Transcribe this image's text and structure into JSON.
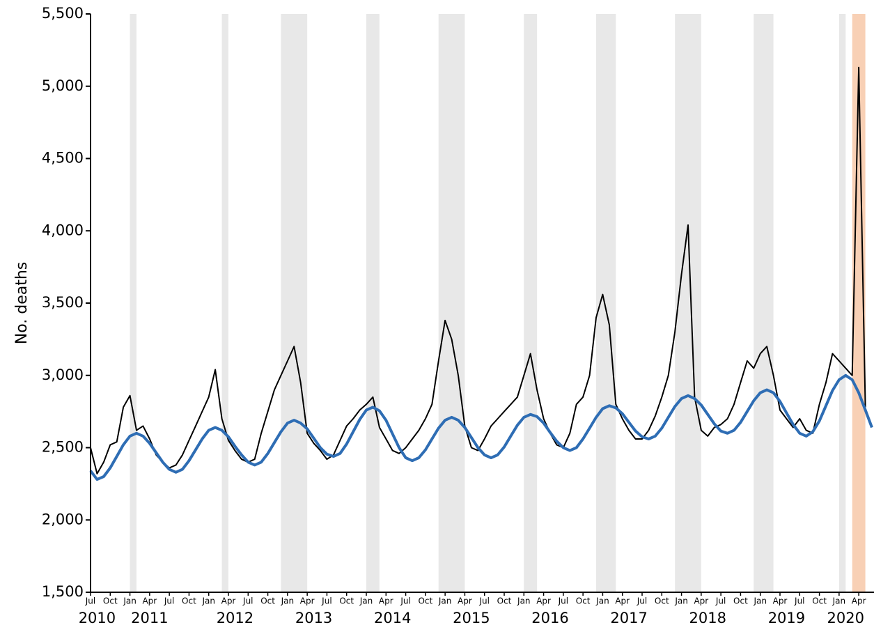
{
  "chart_data": {
    "type": "line",
    "y_label": "No. deaths",
    "ylim": [
      1500,
      5500
    ],
    "yticks": [
      {
        "value": 1500,
        "label": "1,500"
      },
      {
        "value": 2000,
        "label": "2,000"
      },
      {
        "value": 2500,
        "label": "2,500"
      },
      {
        "value": 3000,
        "label": "3,000"
      },
      {
        "value": 3500,
        "label": "3,500"
      },
      {
        "value": 4000,
        "label": "4,000"
      },
      {
        "value": 4500,
        "label": "4,500"
      },
      {
        "value": 5000,
        "label": "5,000"
      },
      {
        "value": 5500,
        "label": "5,500"
      }
    ],
    "xlim": [
      "2010-07",
      "2020-06"
    ],
    "xticks": [
      {
        "value": "2010-07",
        "label": "Jul"
      },
      {
        "value": "2010-10",
        "label": "Oct"
      },
      {
        "value": "2011-01",
        "label": "Jan"
      },
      {
        "value": "2011-04",
        "label": "Apr"
      },
      {
        "value": "2011-07",
        "label": "Jul"
      },
      {
        "value": "2011-10",
        "label": "Oct"
      },
      {
        "value": "2012-01",
        "label": "Jan"
      },
      {
        "value": "2012-04",
        "label": "Apr"
      },
      {
        "value": "2012-07",
        "label": "Jul"
      },
      {
        "value": "2012-10",
        "label": "Oct"
      },
      {
        "value": "2013-01",
        "label": "Jan"
      },
      {
        "value": "2013-04",
        "label": "Apr"
      },
      {
        "value": "2013-07",
        "label": "Jul"
      },
      {
        "value": "2013-10",
        "label": "Oct"
      },
      {
        "value": "2014-01",
        "label": "Jan"
      },
      {
        "value": "2014-04",
        "label": "Apr"
      },
      {
        "value": "2014-07",
        "label": "Jul"
      },
      {
        "value": "2014-10",
        "label": "Oct"
      },
      {
        "value": "2015-01",
        "label": "Jan"
      },
      {
        "value": "2015-04",
        "label": "Apr"
      },
      {
        "value": "2015-07",
        "label": "Jul"
      },
      {
        "value": "2015-10",
        "label": "Oct"
      },
      {
        "value": "2016-01",
        "label": "Jan"
      },
      {
        "value": "2016-04",
        "label": "Apr"
      },
      {
        "value": "2016-07",
        "label": "Jul"
      },
      {
        "value": "2016-10",
        "label": "Oct"
      },
      {
        "value": "2017-01",
        "label": "Jan"
      },
      {
        "value": "2017-04",
        "label": "Apr"
      },
      {
        "value": "2017-07",
        "label": "Jul"
      },
      {
        "value": "2017-10",
        "label": "Oct"
      },
      {
        "value": "2018-01",
        "label": "Jan"
      },
      {
        "value": "2018-04",
        "label": "Apr"
      },
      {
        "value": "2018-07",
        "label": "Jul"
      },
      {
        "value": "2018-10",
        "label": "Oct"
      },
      {
        "value": "2019-01",
        "label": "Jan"
      },
      {
        "value": "2019-04",
        "label": "Apr"
      },
      {
        "value": "2019-07",
        "label": "Jul"
      },
      {
        "value": "2019-10",
        "label": "Oct"
      },
      {
        "value": "2020-01",
        "label": "Jan"
      },
      {
        "value": "2020-04",
        "label": "Apr"
      }
    ],
    "year_ticks": [
      {
        "value": "2010-08",
        "label": "2010"
      },
      {
        "value": "2011-04",
        "label": "2011"
      },
      {
        "value": "2012-05",
        "label": "2012"
      },
      {
        "value": "2013-05",
        "label": "2013"
      },
      {
        "value": "2014-05",
        "label": "2014"
      },
      {
        "value": "2015-05",
        "label": "2015"
      },
      {
        "value": "2016-05",
        "label": "2016"
      },
      {
        "value": "2017-05",
        "label": "2017"
      },
      {
        "value": "2018-05",
        "label": "2018"
      },
      {
        "value": "2019-05",
        "label": "2019"
      },
      {
        "value": "2020-02",
        "label": "2020"
      }
    ],
    "shaded_periods": [
      {
        "start": "2011-01",
        "end": "2011-02",
        "color": "#d9d9d9"
      },
      {
        "start": "2012-03",
        "end": "2012-04",
        "color": "#d9d9d9"
      },
      {
        "start": "2012-12",
        "end": "2013-04",
        "color": "#d9d9d9"
      },
      {
        "start": "2014-01",
        "end": "2014-03",
        "color": "#d9d9d9"
      },
      {
        "start": "2014-12",
        "end": "2015-04",
        "color": "#d9d9d9"
      },
      {
        "start": "2016-01",
        "end": "2016-03",
        "color": "#d9d9d9"
      },
      {
        "start": "2016-12",
        "end": "2017-03",
        "color": "#d9d9d9"
      },
      {
        "start": "2017-12",
        "end": "2018-04",
        "color": "#d9d9d9"
      },
      {
        "start": "2018-12",
        "end": "2019-03",
        "color": "#d9d9d9"
      },
      {
        "start": "2020-01",
        "end": "2020-02",
        "color": "#d9d9d9"
      },
      {
        "start": "2020-03",
        "end": "2020-05",
        "color": "#f4b183"
      }
    ],
    "x": [
      "2010-07",
      "2010-08",
      "2010-09",
      "2010-10",
      "2010-11",
      "2010-12",
      "2011-01",
      "2011-02",
      "2011-03",
      "2011-04",
      "2011-05",
      "2011-06",
      "2011-07",
      "2011-08",
      "2011-09",
      "2011-10",
      "2011-11",
      "2011-12",
      "2012-01",
      "2012-02",
      "2012-03",
      "2012-04",
      "2012-05",
      "2012-06",
      "2012-07",
      "2012-08",
      "2012-09",
      "2012-10",
      "2012-11",
      "2012-12",
      "2013-01",
      "2013-02",
      "2013-03",
      "2013-04",
      "2013-05",
      "2013-06",
      "2013-07",
      "2013-08",
      "2013-09",
      "2013-10",
      "2013-11",
      "2013-12",
      "2014-01",
      "2014-02",
      "2014-03",
      "2014-04",
      "2014-05",
      "2014-06",
      "2014-07",
      "2014-08",
      "2014-09",
      "2014-10",
      "2014-11",
      "2014-12",
      "2015-01",
      "2015-02",
      "2015-03",
      "2015-04",
      "2015-05",
      "2015-06",
      "2015-07",
      "2015-08",
      "2015-09",
      "2015-10",
      "2015-11",
      "2015-12",
      "2016-01",
      "2016-02",
      "2016-03",
      "2016-04",
      "2016-05",
      "2016-06",
      "2016-07",
      "2016-08",
      "2016-09",
      "2016-10",
      "2016-11",
      "2016-12",
      "2017-01",
      "2017-02",
      "2017-03",
      "2017-04",
      "2017-05",
      "2017-06",
      "2017-07",
      "2017-08",
      "2017-09",
      "2017-10",
      "2017-11",
      "2017-12",
      "2018-01",
      "2018-02",
      "2018-03",
      "2018-04",
      "2018-05",
      "2018-06",
      "2018-07",
      "2018-08",
      "2018-09",
      "2018-10",
      "2018-11",
      "2018-12",
      "2019-01",
      "2019-02",
      "2019-03",
      "2019-04",
      "2019-05",
      "2019-06",
      "2019-07",
      "2019-08",
      "2019-09",
      "2019-10",
      "2019-11",
      "2019-12",
      "2020-01",
      "2020-02",
      "2020-03",
      "2020-04",
      "2020-05",
      "2020-06"
    ],
    "series": [
      {
        "color": "#000000",
        "line_width": 2,
        "values": [
          2500,
          2320,
          2400,
          2520,
          2540,
          2780,
          2860,
          2620,
          2650,
          2560,
          2450,
          2400,
          2360,
          2380,
          2450,
          2550,
          2650,
          2750,
          2850,
          3040,
          2700,
          2550,
          2480,
          2420,
          2400,
          2420,
          2600,
          2750,
          2900,
          3000,
          3100,
          3200,
          2950,
          2600,
          2530,
          2480,
          2420,
          2450,
          2550,
          2650,
          2700,
          2760,
          2800,
          2850,
          2640,
          2560,
          2480,
          2460,
          2500,
          2560,
          2620,
          2700,
          2800,
          3100,
          3380,
          3250,
          3000,
          2650,
          2500,
          2480,
          2560,
          2650,
          2700,
          2750,
          2800,
          2850,
          3000,
          3150,
          2900,
          2700,
          2600,
          2520,
          2500,
          2600,
          2800,
          2850,
          3000,
          3400,
          3560,
          3350,
          2800,
          2700,
          2620,
          2560,
          2560,
          2620,
          2720,
          2850,
          3000,
          3300,
          3700,
          4040,
          2850,
          2620,
          2580,
          2640,
          2660,
          2700,
          2800,
          2950,
          3100,
          3050,
          3150,
          3200,
          3000,
          2760,
          2700,
          2640,
          2700,
          2620,
          2600,
          2800,
          2950,
          3150,
          3100,
          3050,
          3000,
          5130,
          2780,
          null
        ]
      },
      {
        "color": "#2e6db4",
        "line_width": 4,
        "values": [
          2340,
          2280,
          2300,
          2360,
          2440,
          2520,
          2580,
          2600,
          2580,
          2530,
          2465,
          2400,
          2350,
          2330,
          2350,
          2410,
          2485,
          2560,
          2620,
          2640,
          2620,
          2575,
          2510,
          2450,
          2400,
          2380,
          2400,
          2460,
          2535,
          2610,
          2670,
          2690,
          2670,
          2630,
          2565,
          2500,
          2455,
          2440,
          2460,
          2525,
          2610,
          2695,
          2760,
          2780,
          2755,
          2690,
          2595,
          2500,
          2430,
          2410,
          2430,
          2485,
          2560,
          2635,
          2690,
          2710,
          2690,
          2640,
          2570,
          2500,
          2450,
          2430,
          2450,
          2505,
          2580,
          2655,
          2710,
          2730,
          2715,
          2670,
          2605,
          2545,
          2500,
          2480,
          2500,
          2560,
          2635,
          2710,
          2770,
          2790,
          2775,
          2735,
          2675,
          2615,
          2575,
          2560,
          2580,
          2635,
          2710,
          2785,
          2840,
          2860,
          2840,
          2795,
          2730,
          2665,
          2615,
          2600,
          2620,
          2675,
          2750,
          2825,
          2880,
          2900,
          2880,
          2820,
          2740,
          2660,
          2600,
          2580,
          2610,
          2685,
          2790,
          2895,
          2970,
          3000,
          2970,
          2880,
          2760,
          2640
        ]
      }
    ]
  }
}
